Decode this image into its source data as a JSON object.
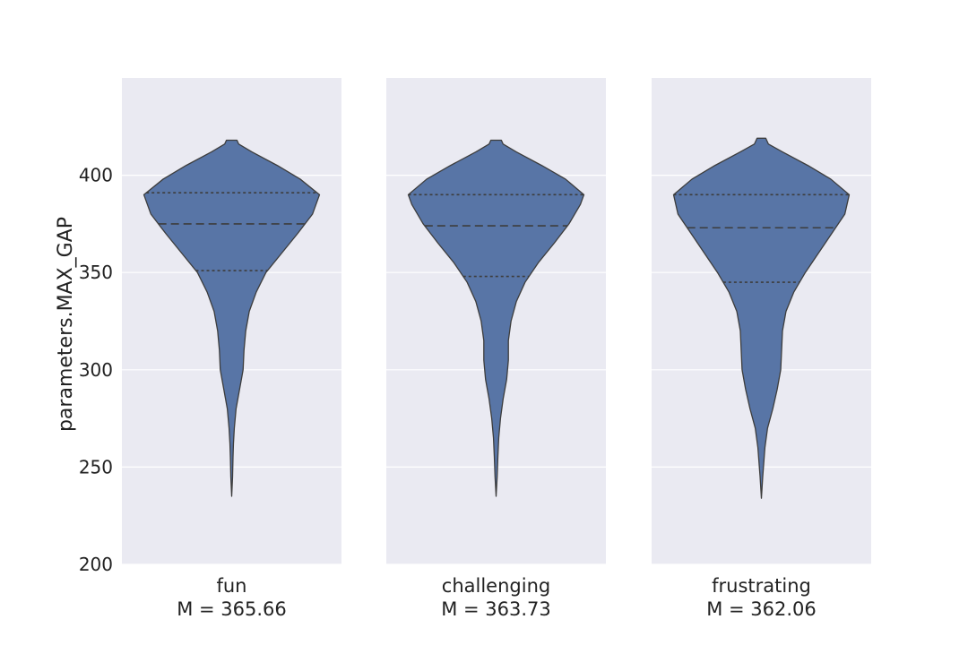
{
  "chart_data": {
    "type": "violin",
    "ylabel": "parameters.MAX_GAP",
    "ylim": [
      200,
      450
    ],
    "yticks": [
      200,
      250,
      300,
      350,
      400
    ],
    "grid": true,
    "panels": [
      {
        "category": "fun",
        "mean_label": "M = 365.66",
        "mean": 365.66,
        "min": 235,
        "max": 418,
        "quartiles": [
          351,
          375,
          391
        ],
        "profile": [
          [
            235,
            0.0
          ],
          [
            245,
            0.01
          ],
          [
            255,
            0.015
          ],
          [
            262,
            0.02
          ],
          [
            270,
            0.03
          ],
          [
            280,
            0.05
          ],
          [
            290,
            0.09
          ],
          [
            300,
            0.13
          ],
          [
            310,
            0.14
          ],
          [
            320,
            0.16
          ],
          [
            330,
            0.2
          ],
          [
            340,
            0.28
          ],
          [
            350,
            0.39
          ],
          [
            360,
            0.57
          ],
          [
            370,
            0.75
          ],
          [
            380,
            0.92
          ],
          [
            390,
            1.0
          ],
          [
            398,
            0.78
          ],
          [
            405,
            0.52
          ],
          [
            412,
            0.23
          ],
          [
            416,
            0.08
          ],
          [
            418,
            0.06
          ]
        ]
      },
      {
        "category": "challenging",
        "mean_label": "M = 363.73",
        "mean": 363.73,
        "min": 235,
        "max": 418,
        "quartiles": [
          348,
          374,
          390
        ],
        "profile": [
          [
            235,
            0.0
          ],
          [
            245,
            0.012
          ],
          [
            255,
            0.02
          ],
          [
            265,
            0.03
          ],
          [
            275,
            0.05
          ],
          [
            285,
            0.08
          ],
          [
            295,
            0.12
          ],
          [
            305,
            0.14
          ],
          [
            315,
            0.14
          ],
          [
            325,
            0.17
          ],
          [
            335,
            0.23
          ],
          [
            345,
            0.33
          ],
          [
            355,
            0.48
          ],
          [
            365,
            0.66
          ],
          [
            375,
            0.83
          ],
          [
            385,
            0.96
          ],
          [
            390,
            1.0
          ],
          [
            398,
            0.79
          ],
          [
            405,
            0.52
          ],
          [
            412,
            0.23
          ],
          [
            416,
            0.08
          ],
          [
            418,
            0.06
          ]
        ]
      },
      {
        "category": "frustrating",
        "mean_label": "M = 362.06",
        "mean": 362.06,
        "min": 234,
        "max": 419,
        "quartiles": [
          345,
          373,
          390
        ],
        "profile": [
          [
            234,
            0.0
          ],
          [
            245,
            0.015
          ],
          [
            260,
            0.04
          ],
          [
            270,
            0.07
          ],
          [
            280,
            0.13
          ],
          [
            290,
            0.18
          ],
          [
            300,
            0.22
          ],
          [
            310,
            0.23
          ],
          [
            320,
            0.24
          ],
          [
            330,
            0.28
          ],
          [
            340,
            0.37
          ],
          [
            350,
            0.5
          ],
          [
            360,
            0.65
          ],
          [
            370,
            0.8
          ],
          [
            380,
            0.95
          ],
          [
            390,
            1.0
          ],
          [
            398,
            0.79
          ],
          [
            405,
            0.53
          ],
          [
            412,
            0.24
          ],
          [
            416,
            0.08
          ],
          [
            419,
            0.05
          ]
        ]
      }
    ]
  },
  "colors": {
    "panel_bg": "#eaeaf2",
    "grid": "#ffffff",
    "violin_fill": "#5875a6",
    "violin_edge": "#3d3d3d",
    "text": "#222222"
  }
}
